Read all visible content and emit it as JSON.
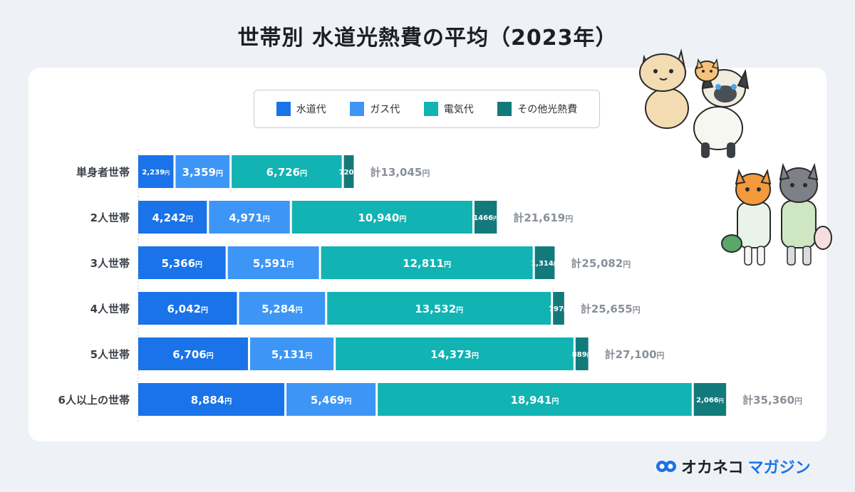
{
  "title": "世帯別 水道光熱費の平均（2023年）",
  "legend": [
    {
      "label": "水道代",
      "color": "#1a73e8"
    },
    {
      "label": "ガス代",
      "color": "#3d96f5"
    },
    {
      "label": "電気代",
      "color": "#11b3b3"
    },
    {
      "label": "その他光熱費",
      "color": "#137a7c"
    }
  ],
  "logo": {
    "main": "オカネコ",
    "sub": "マガジン",
    "icon": "cat-face-icon"
  },
  "chart_data": {
    "type": "bar",
    "orientation": "horizontal",
    "stacked": true,
    "unit": "円",
    "total_prefix": "計",
    "categories": [
      "単身者世帯",
      "2人世帯",
      "3人世帯",
      "4人世帯",
      "5人世帯",
      "6人以上の世帯"
    ],
    "series": [
      {
        "name": "水道代",
        "color": "#1a73e8",
        "values": [
          2239,
          4242,
          5366,
          6042,
          6706,
          8884
        ],
        "labels": [
          "2,239",
          "4,242",
          "5,366",
          "6,042",
          "6,706",
          "8,884"
        ]
      },
      {
        "name": "ガス代",
        "color": "#3d96f5",
        "values": [
          3359,
          4971,
          5591,
          5284,
          5131,
          5469
        ],
        "labels": [
          "3,359",
          "4,971",
          "5,591",
          "5,284",
          "5,131",
          "5,469"
        ]
      },
      {
        "name": "電気代",
        "color": "#11b3b3",
        "values": [
          6726,
          10940,
          12811,
          13532,
          14373,
          18941
        ],
        "labels": [
          "6,726",
          "10,940",
          "12,811",
          "13,532",
          "14,373",
          "18,941"
        ]
      },
      {
        "name": "その他光熱費",
        "color": "#137a7c",
        "values": [
          720,
          1466,
          1314,
          797,
          889,
          2066
        ],
        "labels": [
          "720",
          "1466",
          "1,314",
          "797",
          "889",
          "2,066"
        ]
      }
    ],
    "totals": [
      "13,045",
      "21,619",
      "25,082",
      "25,655",
      "27,100",
      "35,360"
    ]
  }
}
